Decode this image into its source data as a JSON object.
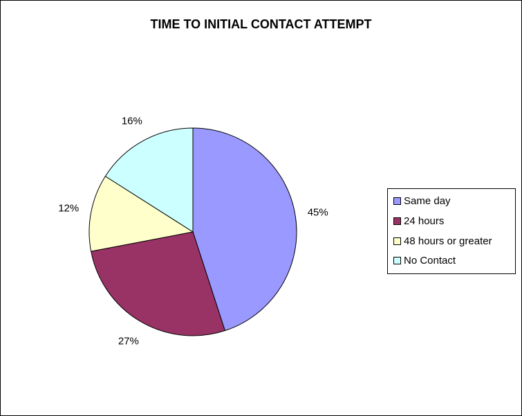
{
  "chart_data": {
    "type": "pie",
    "title": "TIME TO INITIAL CONTACT ATTEMPT",
    "categories": [
      "Same day",
      "24 hours",
      "48 hours or greater",
      "No Contact"
    ],
    "values": [
      45,
      27,
      12,
      16
    ],
    "labels": [
      "45%",
      "27%",
      "12%",
      "16%"
    ],
    "colors": [
      "#9999FF",
      "#993366",
      "#FFFFCC",
      "#CCFFFF"
    ],
    "legend_position": "right"
  }
}
